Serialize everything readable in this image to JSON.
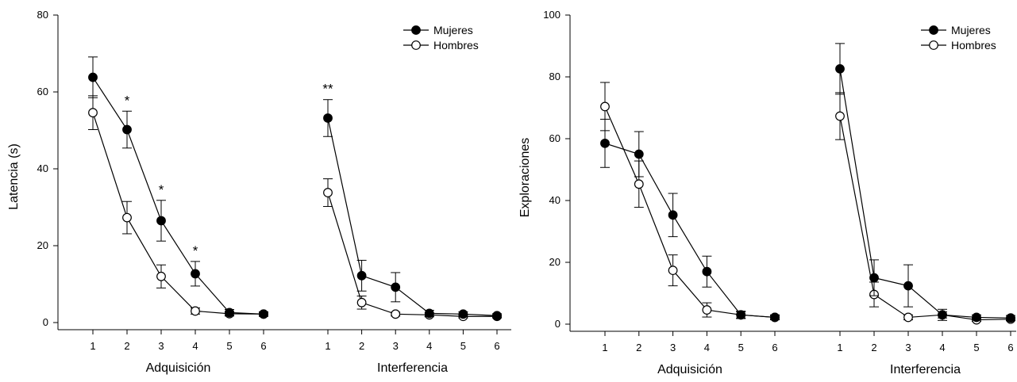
{
  "chart_data": [
    {
      "type": "line",
      "ylabel": "Latencia (s)",
      "ylim": [
        0,
        80
      ],
      "yticks": [
        0,
        20,
        40,
        60,
        80
      ],
      "legend_position": "top-right",
      "panels": [
        {
          "label": "Adquisición",
          "x": [
            "1",
            "2",
            "3",
            "4",
            "5",
            "6"
          ],
          "series": [
            {
              "name": "Mujeres",
              "marker": "filled",
              "values": [
                63.8,
                50.2,
                26.5,
                12.7,
                2.6,
                2.2
              ],
              "errors": [
                5.3,
                4.8,
                5.3,
                3.2,
                0.8,
                0.6
              ]
            },
            {
              "name": "Hombres",
              "marker": "open",
              "values": [
                54.6,
                27.3,
                12.0,
                3.0,
                2.3,
                2.2
              ],
              "errors": [
                4.4,
                4.2,
                3.0,
                0.8,
                0.6,
                0.5
              ]
            }
          ],
          "annotations": [
            {
              "x": "2",
              "text": "*"
            },
            {
              "x": "3",
              "text": "*"
            },
            {
              "x": "4",
              "text": "*"
            }
          ]
        },
        {
          "label": "Interferencia",
          "x": [
            "1",
            "2",
            "3",
            "4",
            "5",
            "6"
          ],
          "series": [
            {
              "name": "Mujeres",
              "marker": "filled",
              "values": [
                53.2,
                12.2,
                9.2,
                2.4,
                2.2,
                1.8
              ],
              "errors": [
                4.8,
                4.0,
                3.8,
                0.8,
                0.6,
                0.5
              ]
            },
            {
              "name": "Hombres",
              "marker": "open",
              "values": [
                33.8,
                5.2,
                2.2,
                2.0,
                1.6,
                1.6
              ],
              "errors": [
                3.6,
                1.7,
                0.5,
                0.5,
                0.4,
                0.4
              ]
            }
          ],
          "annotations": [
            {
              "x": "1",
              "text": "**"
            }
          ]
        }
      ]
    },
    {
      "type": "line",
      "ylabel": "Exploraciones",
      "ylim": [
        0,
        100
      ],
      "yticks": [
        0,
        20,
        40,
        60,
        80,
        100
      ],
      "legend_position": "top-right",
      "panels": [
        {
          "label": "Adquisición",
          "x": [
            "1",
            "2",
            "3",
            "4",
            "5",
            "6"
          ],
          "series": [
            {
              "name": "Mujeres",
              "marker": "filled",
              "values": [
                58.5,
                55.0,
                35.3,
                17.0,
                3.0,
                2.2
              ],
              "errors": [
                7.8,
                7.3,
                7.0,
                5.0,
                1.2,
                0.8
              ]
            },
            {
              "name": "Hombres",
              "marker": "open",
              "values": [
                70.4,
                45.3,
                17.4,
                4.6,
                3.0,
                2.2
              ],
              "errors": [
                7.8,
                7.5,
                5.0,
                2.3,
                1.0,
                0.6
              ]
            }
          ],
          "annotations": []
        },
        {
          "label": "Interferencia",
          "x": [
            "1",
            "2",
            "3",
            "4",
            "5",
            "6"
          ],
          "series": [
            {
              "name": "Mujeres",
              "marker": "filled",
              "values": [
                82.6,
                15.0,
                12.4,
                3.0,
                2.2,
                2.0
              ],
              "errors": [
                8.2,
                5.8,
                6.8,
                1.8,
                0.8,
                0.8
              ]
            },
            {
              "name": "Hombres",
              "marker": "open",
              "values": [
                67.3,
                9.6,
                2.2,
                3.0,
                1.4,
                1.6
              ],
              "errors": [
                7.6,
                4.0,
                0.8,
                1.0,
                0.5,
                0.5
              ]
            }
          ],
          "annotations": []
        }
      ]
    }
  ]
}
